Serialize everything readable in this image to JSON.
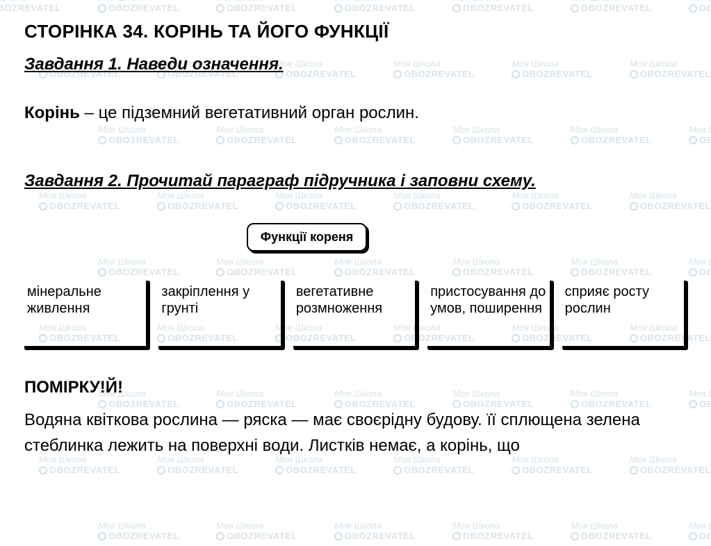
{
  "watermark": {
    "line1": "Моя Школа",
    "line2": "OBOZREVATEL"
  },
  "page_title": "СТОРІНКА 34. КОРІНЬ ТА ЙОГО ФУНКЦІЇ",
  "task1": {
    "heading": "Завдання 1. Наведи означення.",
    "term": "Корінь",
    "dash": " – ",
    "definition": "це підземний вегетативний орган рослин."
  },
  "task2": {
    "heading": "Завдання 2. Прочитай параграф підручника і заповни схему.",
    "scheme_title": "Функції кореня",
    "boxes": [
      "мінеральне живлення",
      "закріплення у грунті",
      "вегетативне розмноження",
      "пристосування до умов, поширення",
      "сприяє росту рослин"
    ]
  },
  "think": {
    "title": "ПОМІРКУ!Й!",
    "body": "Водяна квіткова рослина — ряска — має своєрідну будову. її сплющена зелена стеблинка лежить на поверхні води. Листків немає, а корінь, що"
  },
  "colors": {
    "text": "#000000",
    "background": "#ffffff",
    "watermark": "#d8e3ea"
  }
}
